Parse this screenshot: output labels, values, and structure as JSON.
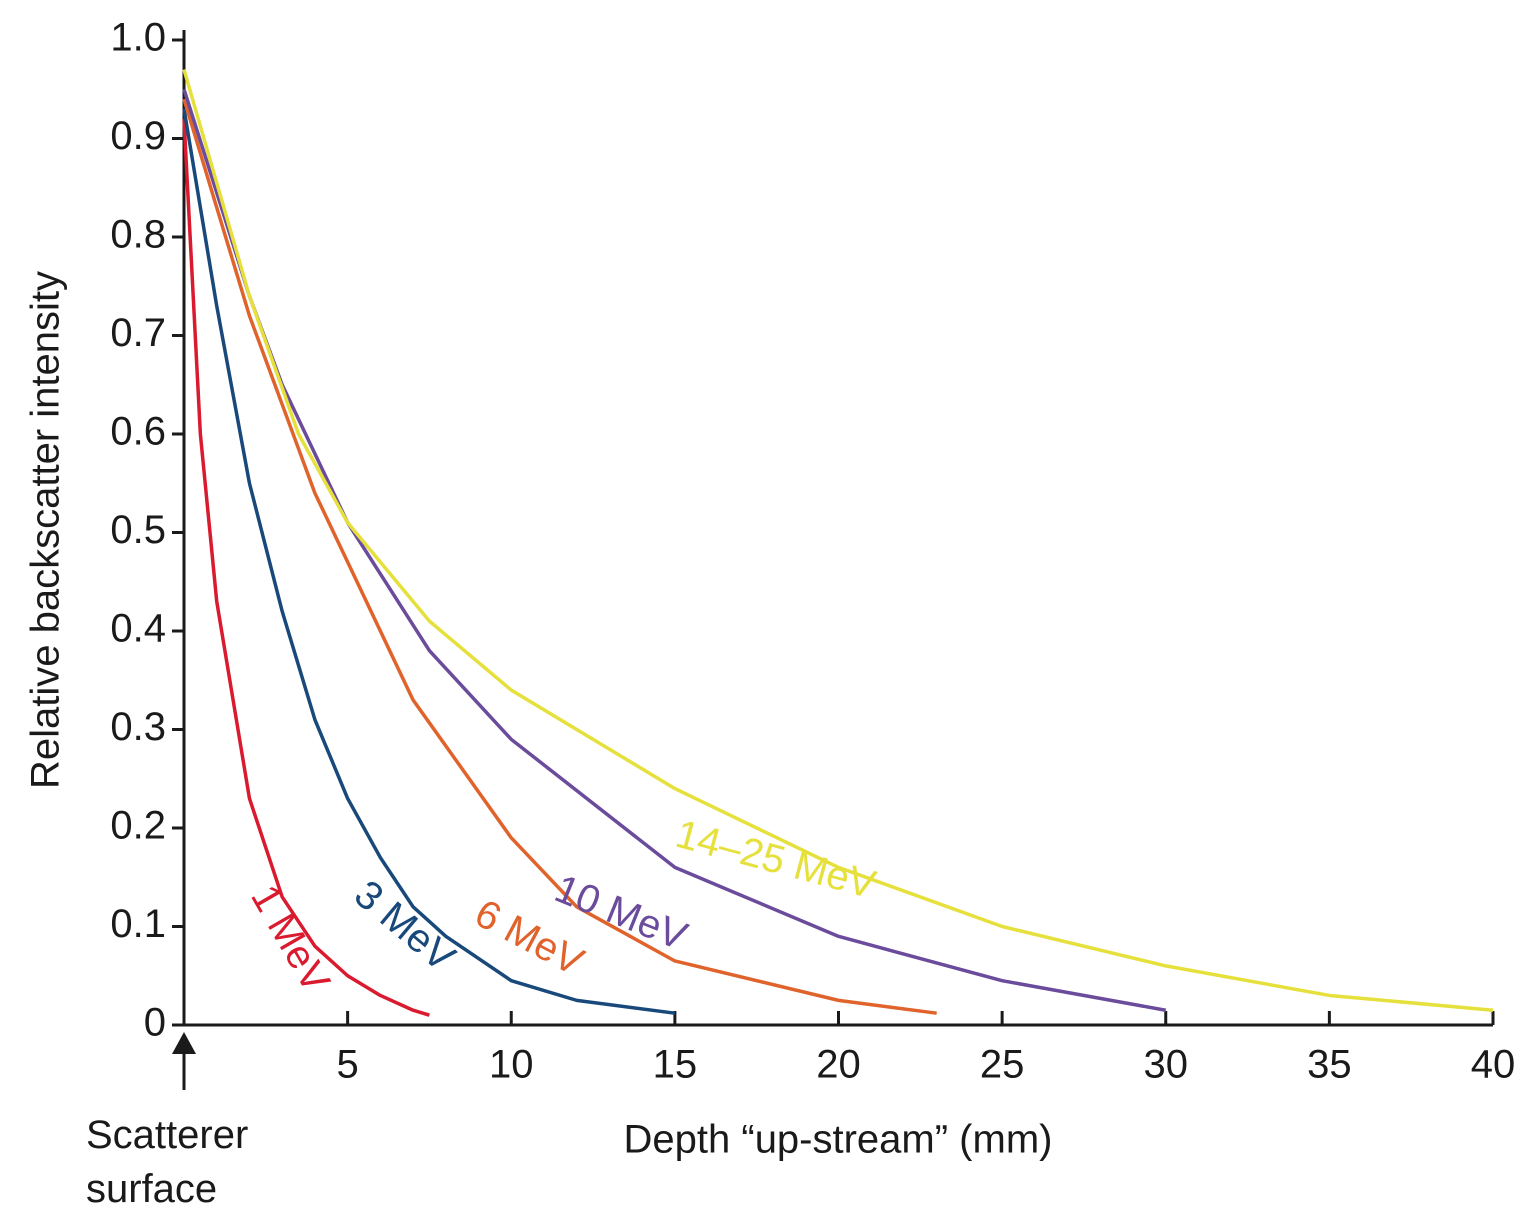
{
  "chart_data": {
    "type": "line",
    "x_label": "Depth “up-stream” (mm)",
    "y_label": "Relative backscatter intensity",
    "annotation": "Scatterer surface",
    "xlim": [
      0,
      40
    ],
    "ylim": [
      0,
      1
    ],
    "xticks": [
      5,
      10,
      15,
      20,
      25,
      30,
      35,
      40
    ],
    "yticks": [
      0,
      0.1,
      0.2,
      0.3,
      0.4,
      0.5,
      0.6,
      0.7,
      0.8,
      0.9,
      {
        "value": 1,
        "label": "1.0"
      }
    ],
    "series": [
      {
        "name": "1 MeV",
        "color": "#d91a2f",
        "x": [
          0,
          0.5,
          1,
          2,
          3,
          4,
          5,
          6,
          7,
          7.5
        ],
        "values": [
          0.92,
          0.6,
          0.43,
          0.23,
          0.13,
          0.08,
          0.05,
          0.03,
          0.015,
          0.01
        ]
      },
      {
        "name": "3 MeV",
        "color": "#18497a",
        "x": [
          0,
          1,
          2,
          3,
          4,
          5,
          6,
          7,
          8,
          10,
          12,
          15
        ],
        "values": [
          0.93,
          0.73,
          0.55,
          0.42,
          0.31,
          0.23,
          0.17,
          0.12,
          0.09,
          0.045,
          0.025,
          0.012
        ]
      },
      {
        "name": "6 MeV",
        "color": "#e0632c",
        "x": [
          0,
          1,
          2,
          3,
          4,
          5,
          7,
          10,
          12,
          15,
          20,
          23
        ],
        "values": [
          0.94,
          0.83,
          0.72,
          0.63,
          0.54,
          0.47,
          0.33,
          0.19,
          0.12,
          0.065,
          0.025,
          0.012
        ]
      },
      {
        "name": "10 MeV",
        "color": "#6b4b9b",
        "x": [
          0,
          2,
          3,
          5,
          7.5,
          10,
          15,
          20,
          25,
          30
        ],
        "values": [
          0.95,
          0.74,
          0.65,
          0.51,
          0.38,
          0.29,
          0.16,
          0.09,
          0.045,
          0.015
        ]
      },
      {
        "name": "14–25 MeV",
        "color": "#e6e03c",
        "x": [
          0,
          2,
          3.5,
          5,
          7.5,
          10,
          15,
          20,
          25,
          30,
          35,
          40
        ],
        "values": [
          0.97,
          0.74,
          0.6,
          0.51,
          0.41,
          0.34,
          0.24,
          0.16,
          0.1,
          0.06,
          0.03,
          0.015
        ]
      }
    ]
  }
}
